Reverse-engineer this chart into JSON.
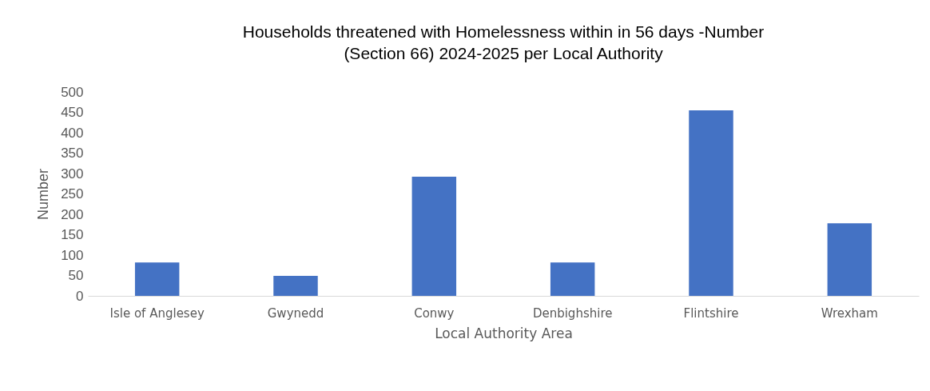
{
  "chart_data": {
    "type": "bar",
    "title": [
      "Households threatened with Homelessness within in 56 days -Number",
      "(Section 66) 2024-2025 per Local Authority"
    ],
    "xlabel": "Local Authority Area",
    "ylabel": "Number",
    "categories": [
      "Isle of Anglesey",
      "Gwynedd",
      "Conwy",
      "Denbighshire",
      "Flintshire",
      "Wrexham"
    ],
    "values": [
      82,
      49,
      292,
      82,
      455,
      178
    ],
    "color": "#4472c4",
    "ylim": [
      0,
      500
    ],
    "yticks": [
      0,
      50,
      100,
      150,
      200,
      250,
      300,
      350,
      400,
      450,
      500
    ],
    "grid": false
  }
}
